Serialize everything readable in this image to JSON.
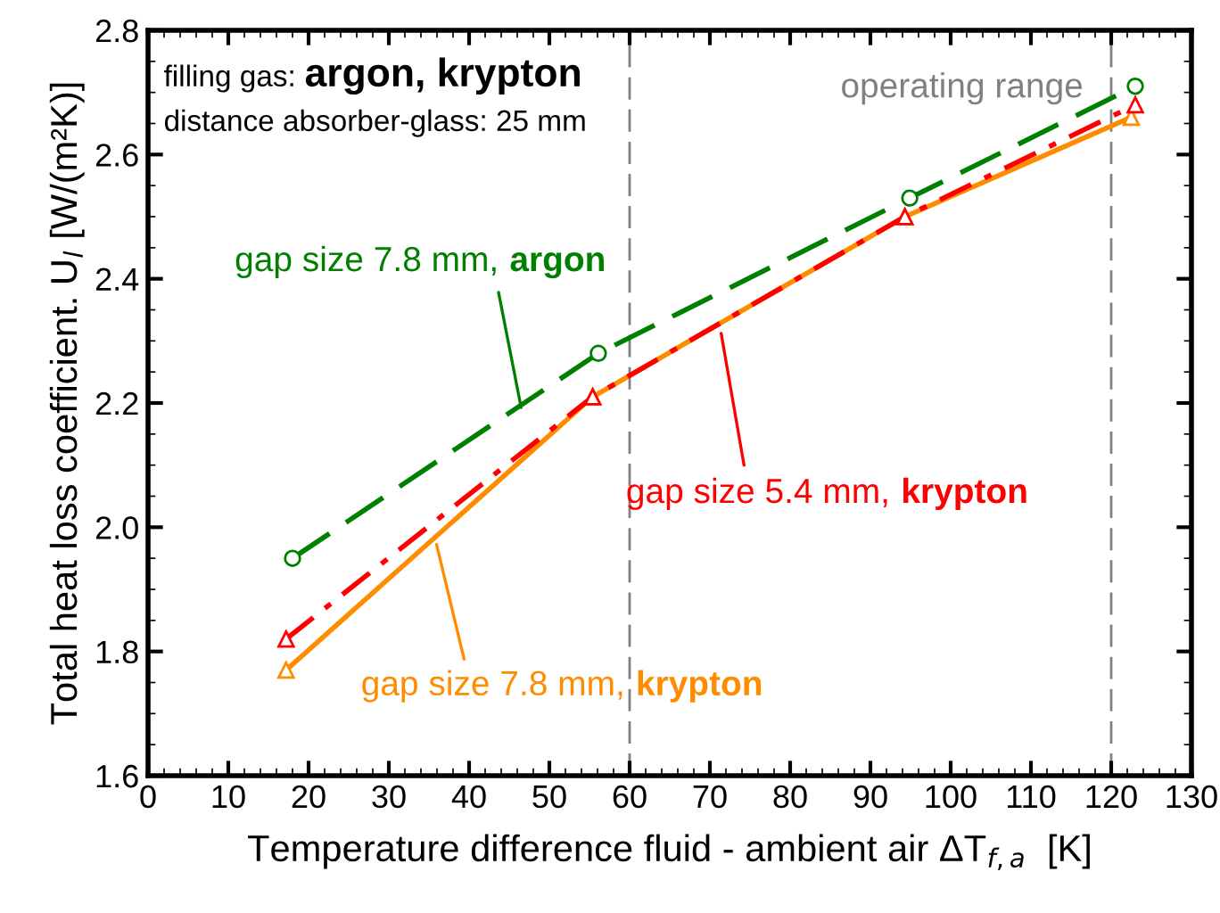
{
  "chart_data": {
    "type": "line",
    "xlabel": "Temperature difference fluid - ambient air ΔT$_{f,a}$  [K]",
    "ylabel": "Total heat loss coefficient. U$_{l}$ [W/(m²K)]",
    "xlim": [
      0,
      130
    ],
    "xticks": [
      0,
      10,
      20,
      30,
      40,
      50,
      60,
      70,
      80,
      90,
      100,
      110,
      120,
      130
    ],
    "ylim": [
      1.6,
      2.8
    ],
    "yticks": [
      {
        "value": 1.6,
        "label": "1.6"
      },
      {
        "value": 1.8,
        "label": "1.8"
      },
      {
        "value": 2.0,
        "label": "2.0"
      },
      {
        "value": 2.2,
        "label": "2.2"
      },
      {
        "value": 2.4,
        "label": "2.4"
      },
      {
        "value": 2.6,
        "label": "2.6"
      },
      {
        "value": 2.8,
        "label": "2.8"
      }
    ],
    "grid": false,
    "series": [
      {
        "name": "gap size 7.8 mm, argon",
        "color": "#008000",
        "x": [
          18,
          56.1,
          94.9,
          123
        ],
        "values": [
          1.95,
          2.28,
          2.53,
          2.71
        ],
        "marker": "circle",
        "line_style": "dashed"
      },
      {
        "name": "gap size 5.4 mm, krypton",
        "color": "#ff0000",
        "x": [
          17.2,
          55.4,
          94.3,
          123
        ],
        "values": [
          1.82,
          2.21,
          2.5,
          2.68
        ],
        "marker": "triangle",
        "line_style": "dashdot"
      },
      {
        "name": "gap size 7.8 mm, krypton",
        "color": "#ff8c00",
        "x": [
          17.2,
          55.4,
          94.3,
          122.5
        ],
        "values": [
          1.77,
          2.21,
          2.5,
          2.66
        ],
        "marker": "triangle",
        "line_style": "solid"
      }
    ],
    "ref_lines": [
      {
        "axis": "x",
        "value": 60,
        "label": null,
        "color": "#808080",
        "line_style": "dashed"
      },
      {
        "axis": "x",
        "value": 120,
        "label": null,
        "color": "#808080",
        "line_style": "dashed"
      }
    ],
    "annotations": [
      "filling gas: argon, krypton",
      "distance absorber-glass: 25 mm",
      "operating range"
    ]
  }
}
